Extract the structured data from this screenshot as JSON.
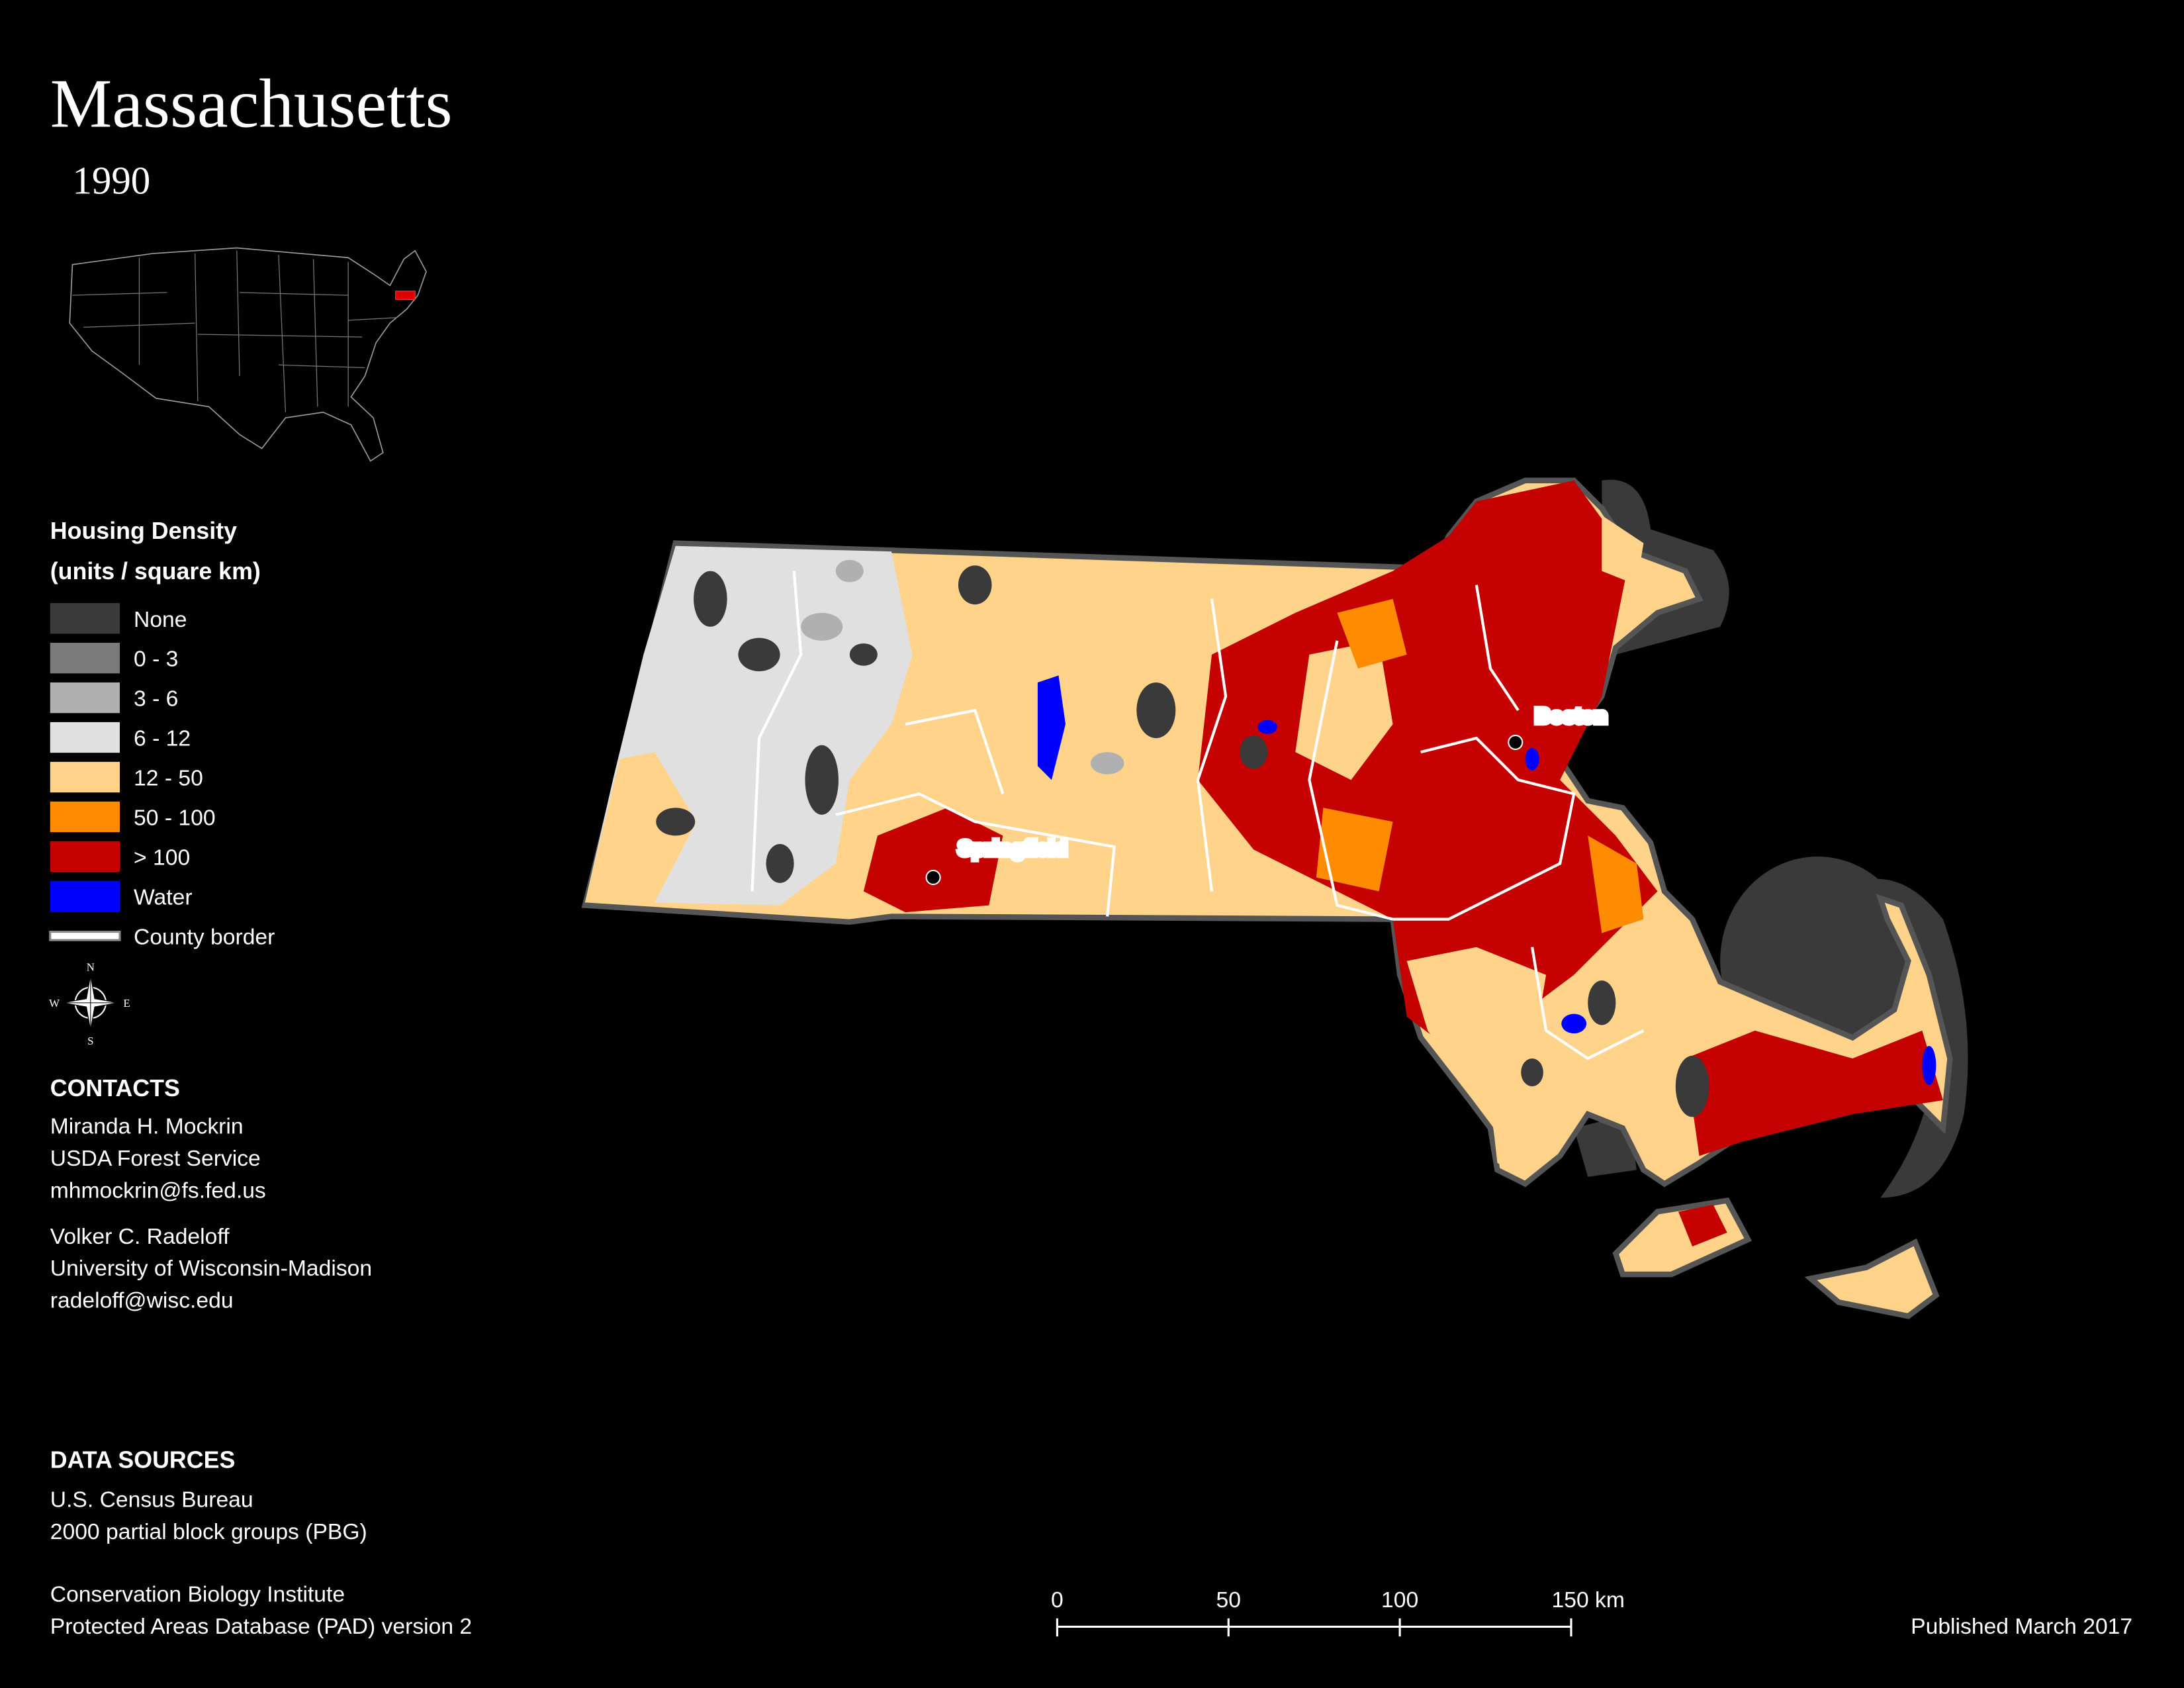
{
  "title": "Massachusetts",
  "subtitle": "1990",
  "legend": {
    "title": "Housing Density",
    "subtitle": "(units / square km)",
    "items": [
      {
        "label": "None",
        "color": "#3a3a3a"
      },
      {
        "label": "0 - 3",
        "color": "#7a7a7a"
      },
      {
        "label": "3 - 6",
        "color": "#b0b0b0"
      },
      {
        "label": "6 - 12",
        "color": "#e0e0e0"
      },
      {
        "label": "12 - 50",
        "color": "#ffd38a"
      },
      {
        "label": "50 - 100",
        "color": "#ff8c00"
      },
      {
        "label": "> 100",
        "color": "#c40000"
      },
      {
        "label": "Water",
        "color": "#0000ff"
      },
      {
        "label": "County border",
        "color": "#ffffff"
      }
    ]
  },
  "compass": {
    "n": "N",
    "s": "S",
    "w": "W",
    "e": "E"
  },
  "cities": [
    {
      "name": "Boston"
    },
    {
      "name": "Springfield"
    }
  ],
  "contacts": {
    "title": "CONTACTS",
    "people": [
      [
        "Miranda H. Mockrin",
        "USDA Forest Service",
        "mhmockrin@fs.fed.us"
      ],
      [
        "Volker C. Radeloff",
        "University of Wisconsin-Madison",
        "radeloff@wisc.edu"
      ]
    ]
  },
  "data_sources": {
    "title": "DATA SOURCES",
    "groups": [
      [
        "U.S. Census Bureau",
        "2000 partial block groups (PBG)"
      ],
      [
        "Conservation Biology Institute",
        "Protected Areas Database (PAD) version 2"
      ]
    ]
  },
  "scale_bar": {
    "range": [
      0,
      150
    ],
    "ticks": [
      0,
      50,
      100,
      {
        "value": 150,
        "label": "150 km"
      }
    ]
  },
  "footer": "Published March 2017"
}
